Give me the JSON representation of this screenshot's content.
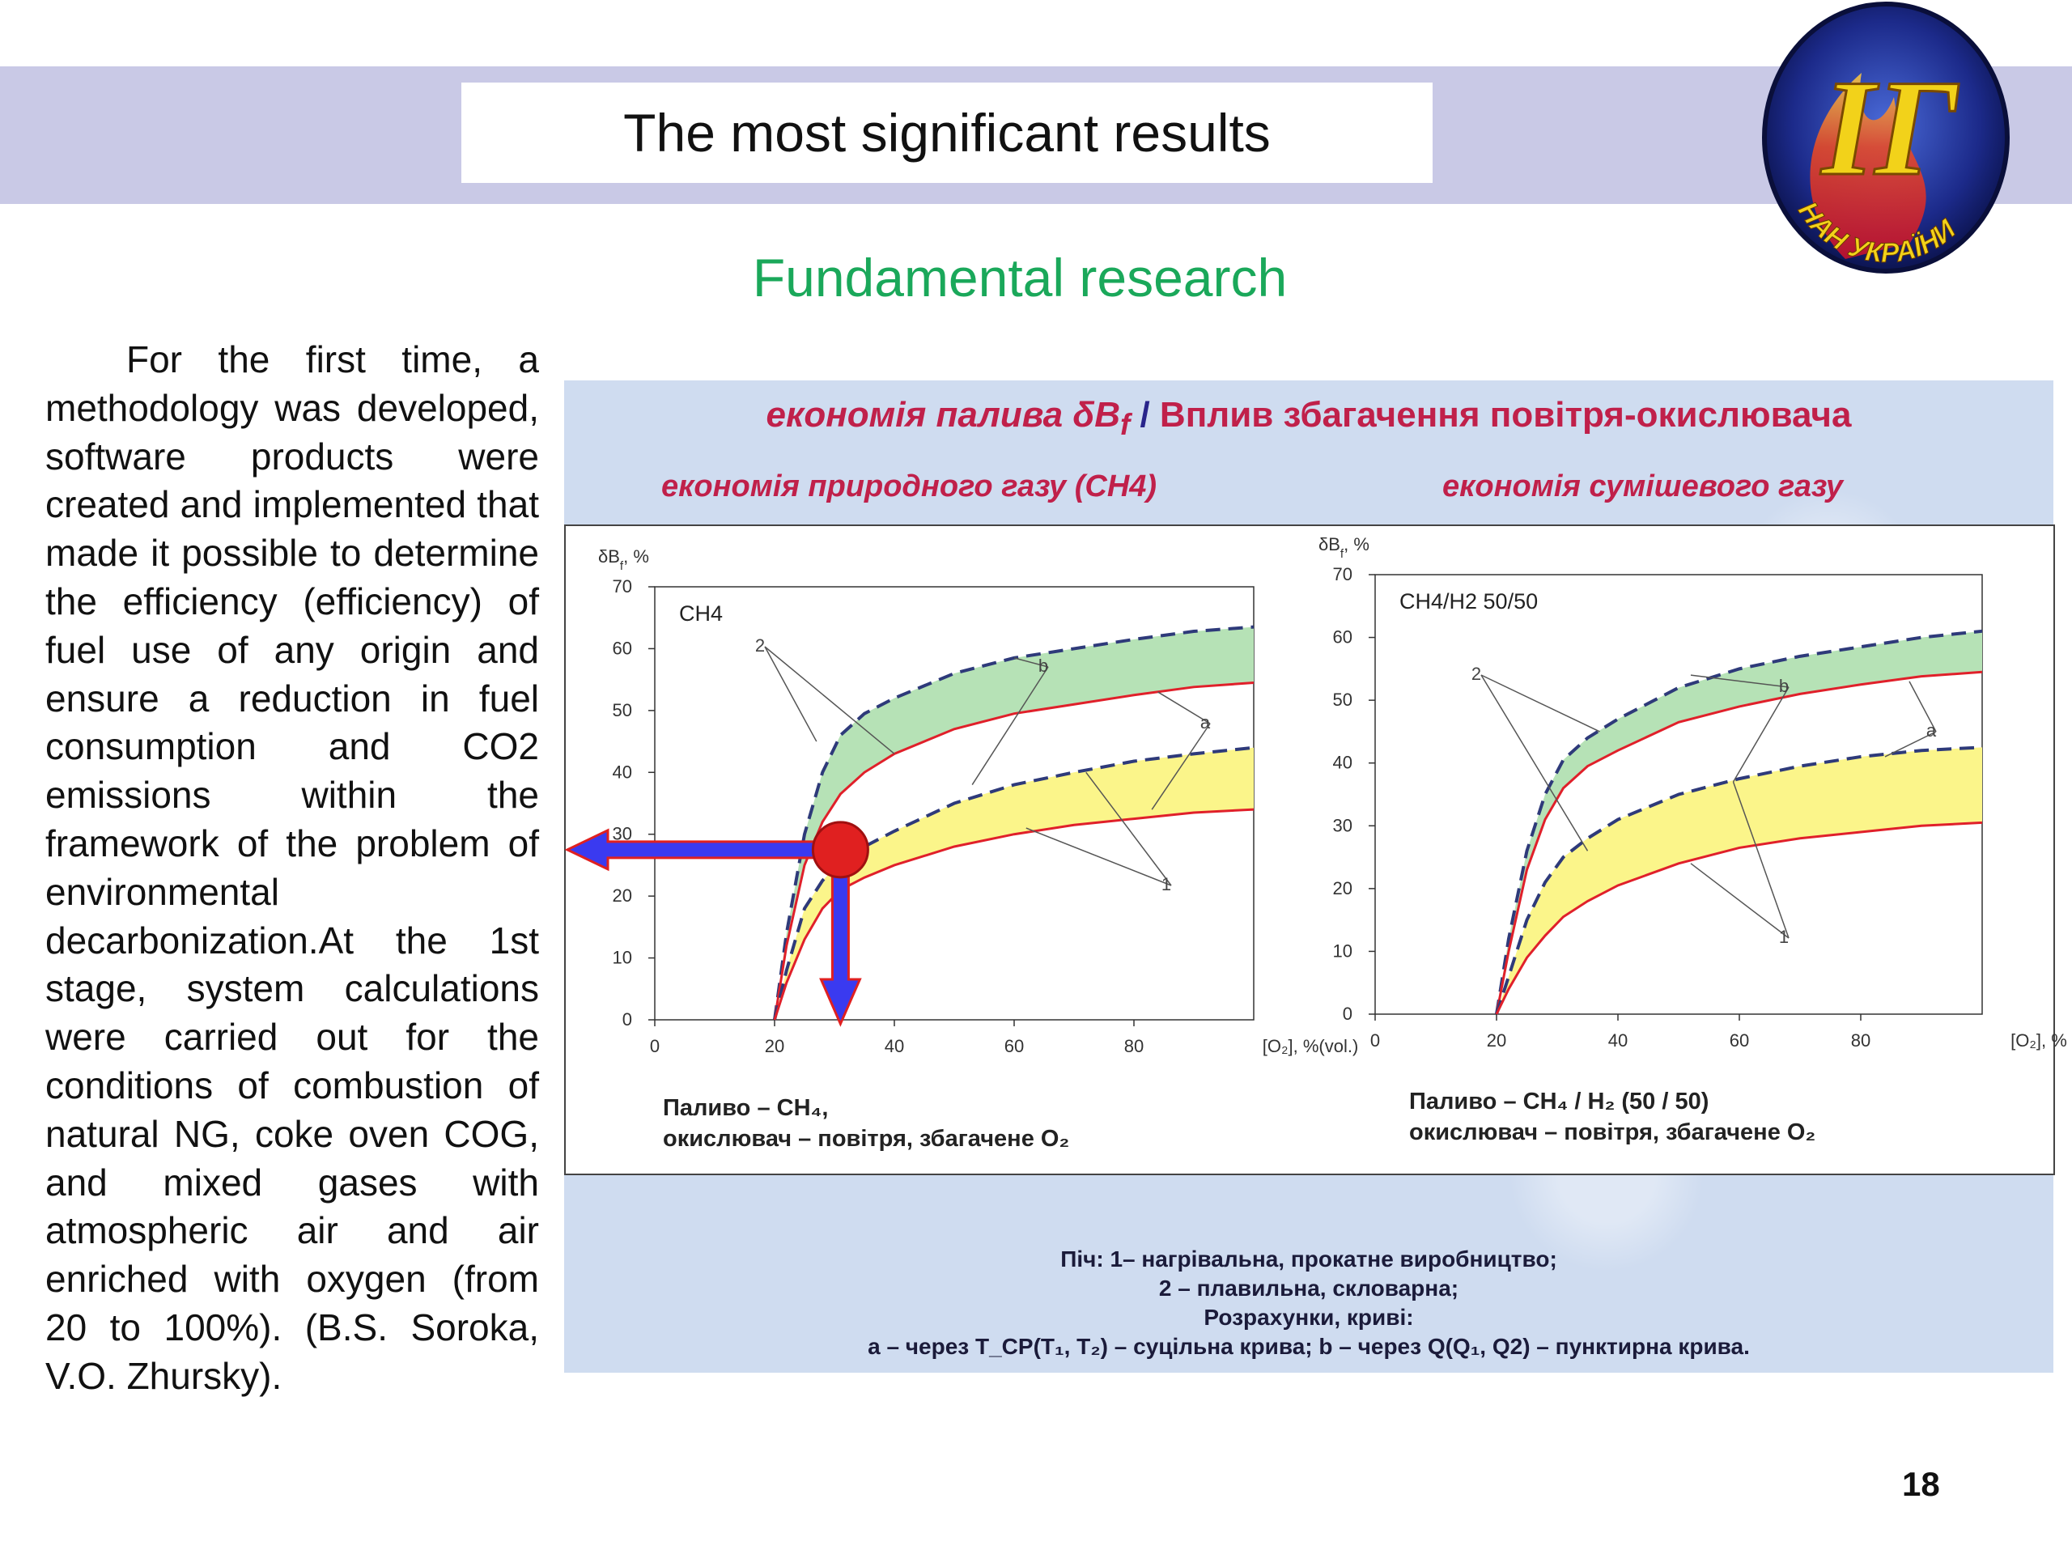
{
  "slide": {
    "title": "The most significant results",
    "section": "Fundamental research",
    "page_number": "18",
    "logo": {
      "letters": "ІГ",
      "ring_text": "НАН УКРАЇНИ"
    },
    "body_text": "For the first time, a methodology was developed, software products were created and implemented that made it possible to determine the efficiency (efficiency) of fuel use of any origin and ensure a reduction in fuel consumption and CO2 emissions within the framework of the problem of environmental decarbonization.At the 1st stage, system calculations were carried out for the conditions of combustion of natural NG, coke oven COG, and mixed gases with atmospheric air and air enriched with oxygen (from 20 to 100%). (B.S. Soroka, V.O. Zhursky)."
  },
  "figure": {
    "header_left": "економія палива δB",
    "header_left_sub": "f",
    "header_sep": " / ",
    "header_right": "Вплив збагачення повітря-окислювача",
    "subtitle_left": "економія природного газу (CH4)",
    "subtitle_right": "економія сумішевого газу",
    "caption_left_line1": "Паливо – CH₄,",
    "caption_left_line2": "окислювач – повітря, збагачене O₂",
    "caption_right_line1": "Паливо – CH₄ / H₂ (50 / 50)",
    "caption_right_line2": "окислювач – повітря, збагачене O₂",
    "legend_line1": "Піч:  1– нагрівальна, прокатне виробництво;",
    "legend_line2": "2 – плавильна, скловарна;",
    "legend_line3": "Розрахунки, криві:",
    "legend_line4": "a – через T_CP(T₁, T₂) – суцільна крива;      b – через Q(Q₁, Q2) – пунктирна крива."
  },
  "colors": {
    "title_band": "#c9c9e6",
    "section_green": "#1aa85a",
    "header_red": "#c0204a",
    "header_navy": "#28248a",
    "curve_red": "#e0202a",
    "curve_dashed": "#2e3a7a",
    "band_green": "#b6e2b6",
    "band_yellow": "#fbf58a",
    "arrow_red": "#e02020",
    "arrow_blue": "#3a3af0"
  },
  "chart_data": [
    {
      "type": "area",
      "panel_label": "CH4",
      "ylabel": "δB",
      "ylabel_sub": "f",
      "ylabel_unit": ", %",
      "xlabel": "[O₂], %(vol.)",
      "xlim": [
        0,
        100
      ],
      "ylim": [
        0,
        70
      ],
      "xticks": [
        0,
        20,
        40,
        60,
        80
      ],
      "yticks": [
        0,
        10,
        20,
        30,
        40,
        50,
        60,
        70
      ],
      "series": [
        {
          "name": "2",
          "style": "dashed",
          "x": [
            20,
            22,
            25,
            28,
            31,
            35,
            40,
            50,
            60,
            70,
            80,
            90,
            100
          ],
          "y": [
            0,
            14,
            30,
            40,
            46,
            49.5,
            52,
            56,
            58.5,
            60,
            61.5,
            62.8,
            63.5
          ]
        },
        {
          "name": "2",
          "style": "solid",
          "x": [
            20,
            22,
            25,
            28,
            31,
            35,
            40,
            50,
            60,
            70,
            80,
            90,
            100
          ],
          "y": [
            0,
            12,
            25,
            32,
            36.5,
            40,
            43,
            47,
            49.5,
            51,
            52.5,
            53.8,
            54.5
          ]
        },
        {
          "name": "1",
          "style": "dashed",
          "x": [
            20,
            22,
            25,
            28,
            31,
            35,
            40,
            50,
            60,
            70,
            80,
            90,
            100
          ],
          "y": [
            0,
            8,
            18,
            22.5,
            25.5,
            28,
            30.5,
            35,
            38,
            40,
            41.8,
            43,
            44
          ]
        },
        {
          "name": "1",
          "style": "solid",
          "x": [
            20,
            22,
            25,
            28,
            31,
            35,
            40,
            50,
            60,
            70,
            80,
            90,
            100
          ],
          "y": [
            0,
            6,
            13,
            18,
            21,
            23,
            25,
            28,
            30,
            31.5,
            32.5,
            33.5,
            34
          ]
        }
      ],
      "curve_labels": {
        "a": "a",
        "b": "b",
        "1": "1",
        "2": "2"
      },
      "highlight_point": {
        "x": 31,
        "y": 27.5
      }
    },
    {
      "type": "area",
      "panel_label": "CH4/H2 50/50",
      "ylabel": "δB",
      "ylabel_sub": "f",
      "ylabel_unit": ", %",
      "xlabel": "[O₂], %",
      "xlim": [
        0,
        100
      ],
      "ylim": [
        0,
        70
      ],
      "xticks": [
        0,
        20,
        40,
        60,
        80
      ],
      "yticks": [
        0,
        10,
        20,
        30,
        40,
        50,
        60,
        70
      ],
      "series": [
        {
          "name": "2",
          "style": "dashed",
          "x": [
            20,
            22,
            25,
            28,
            31,
            35,
            40,
            50,
            60,
            70,
            80,
            90,
            100
          ],
          "y": [
            0,
            12,
            26,
            35,
            40.5,
            44,
            47,
            52,
            55,
            57,
            58.5,
            60,
            61
          ]
        },
        {
          "name": "2",
          "style": "solid",
          "x": [
            20,
            22,
            25,
            28,
            31,
            35,
            40,
            50,
            60,
            70,
            80,
            90,
            100
          ],
          "y": [
            0,
            10,
            23,
            31,
            36,
            39.5,
            42,
            46.5,
            49,
            51,
            52.5,
            53.8,
            54.5
          ]
        },
        {
          "name": "1",
          "style": "dashed",
          "x": [
            20,
            22,
            25,
            28,
            31,
            35,
            40,
            50,
            60,
            70,
            80,
            90,
            100
          ],
          "y": [
            0,
            6,
            15,
            21,
            25,
            28,
            31,
            35,
            37.5,
            39.5,
            41,
            42,
            42.5
          ]
        },
        {
          "name": "1",
          "style": "solid",
          "x": [
            20,
            22,
            25,
            28,
            31,
            35,
            40,
            50,
            60,
            70,
            80,
            90,
            100
          ],
          "y": [
            0,
            4,
            9,
            12.5,
            15.5,
            18,
            20.5,
            24,
            26.5,
            28,
            29,
            30,
            30.5
          ]
        }
      ],
      "curve_labels": {
        "a": "a",
        "b": "b",
        "1": "1",
        "2": "2"
      }
    }
  ]
}
